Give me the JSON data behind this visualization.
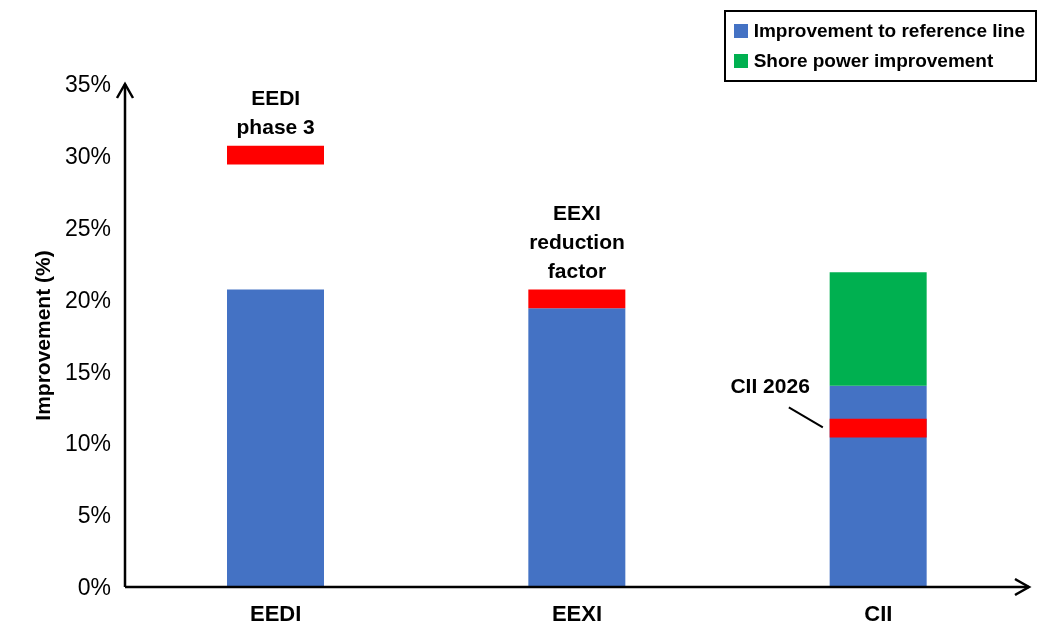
{
  "chart_data": {
    "type": "bar",
    "ylabel": "Improvement (%)",
    "categories": [
      "EEDI",
      "EEXI",
      "CII"
    ],
    "series": [
      {
        "name": "Improvement to reference line",
        "color": "#4472c4",
        "base": [
          0,
          0,
          0
        ],
        "values": [
          20.7,
          19.4,
          14.0
        ]
      },
      {
        "name": "Shore power improvement",
        "color": "#00b050",
        "base": [
          null,
          null,
          14.0
        ],
        "values": [
          null,
          null,
          7.9
        ]
      },
      {
        "type": "bar",
        "color": "#ff0000",
        "base": [
          29.4,
          19.4,
          10.4
        ],
        "values": [
          1.3,
          1.3,
          1.3
        ]
      }
    ],
    "ylim": [
      0,
      35
    ],
    "yticks": [
      {
        "value": 0,
        "label": "0%"
      },
      {
        "value": 5,
        "label": "5%"
      },
      {
        "value": 10,
        "label": "10%"
      },
      {
        "value": 15,
        "label": "15%"
      },
      {
        "value": 20,
        "label": "20%"
      },
      {
        "value": 25,
        "label": "25%"
      },
      {
        "value": 30,
        "label": "30%"
      },
      {
        "value": 35,
        "label": "35%"
      }
    ],
    "grid": false,
    "legend": "top right",
    "annotations": [
      {
        "text": "EEDI phase 3",
        "x": "EEDI",
        "y": 30.7
      },
      {
        "text": "EEXI reduction factor",
        "x": "EEXI",
        "y": 20.7
      },
      "CII 2026"
    ]
  }
}
